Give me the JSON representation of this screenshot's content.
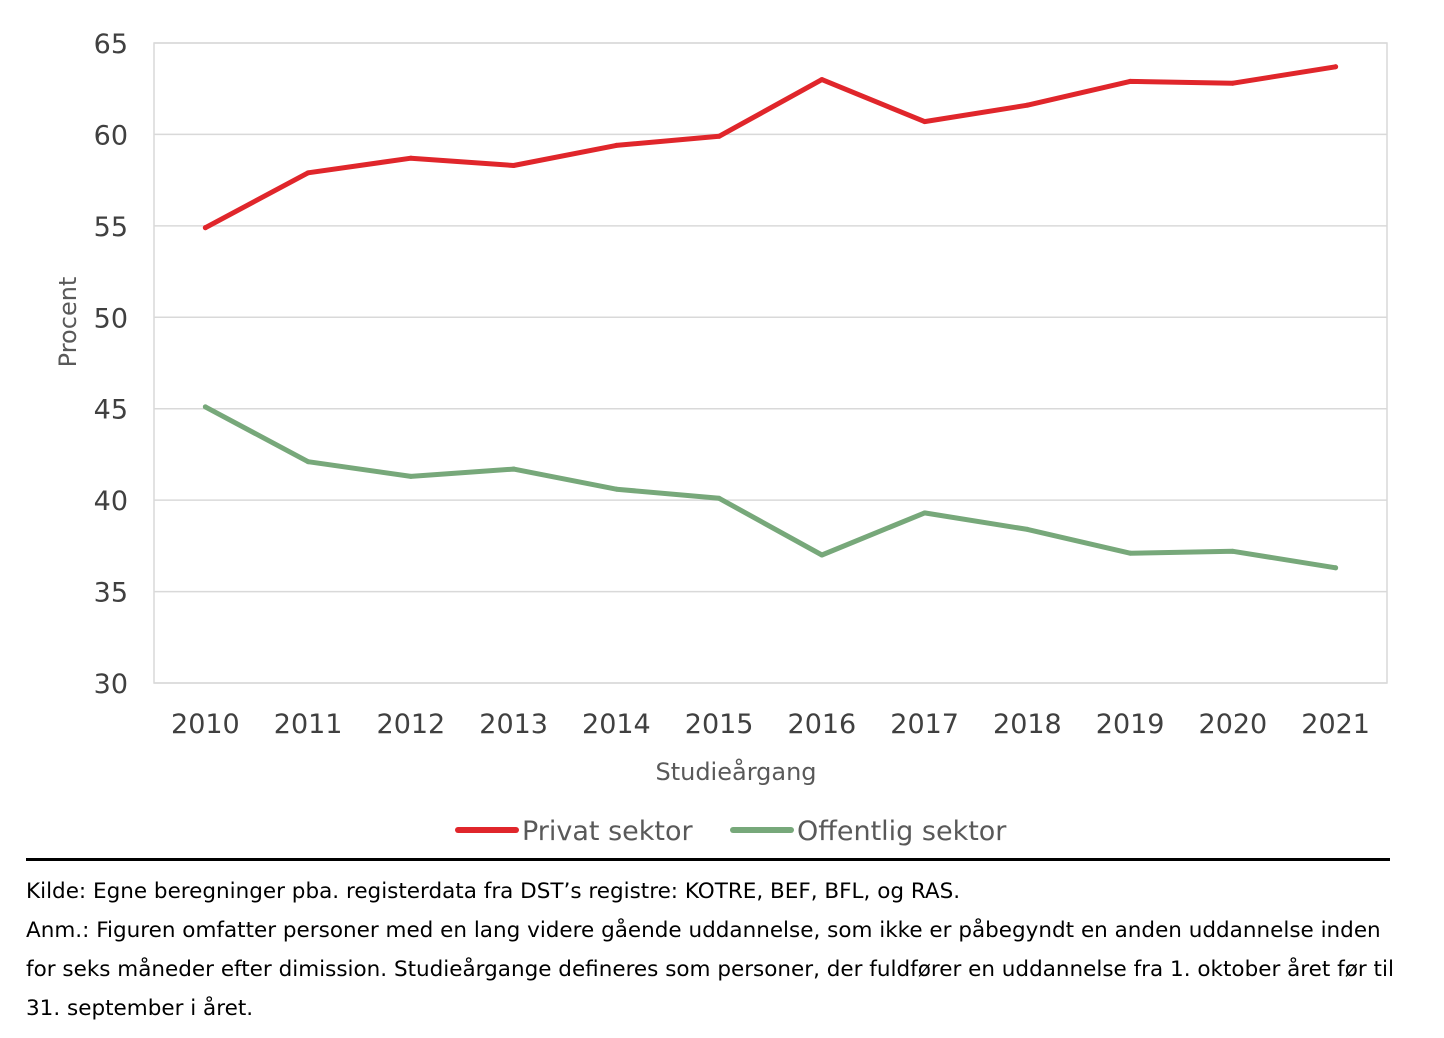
{
  "chart_data": {
    "type": "line",
    "x": [
      "2010",
      "2011",
      "2012",
      "2013",
      "2014",
      "2015",
      "2016",
      "2017",
      "2018",
      "2019",
      "2020",
      "2021"
    ],
    "series": [
      {
        "name": "Privat sektor",
        "color": "#e0262b",
        "values": [
          54.9,
          57.9,
          58.7,
          58.3,
          59.4,
          59.9,
          63.0,
          60.7,
          61.6,
          62.9,
          62.8,
          63.7
        ]
      },
      {
        "name": "Offentlig sektor",
        "color": "#77a87a",
        "values": [
          45.1,
          42.1,
          41.3,
          41.7,
          40.6,
          40.1,
          37.0,
          39.3,
          38.4,
          37.1,
          37.2,
          36.3
        ]
      }
    ],
    "xlabel": "Studieårgang",
    "ylabel": "Procent",
    "ylim": [
      30,
      65
    ],
    "yticks": [
      "30",
      "35",
      "40",
      "45",
      "50",
      "55",
      "60",
      "65"
    ],
    "grid": true,
    "legend": "bottom"
  },
  "notes": {
    "source": "Kilde: Egne beregninger pba. registerdata fra DST’s registre: KOTRE, BEF, BFL, og RAS.",
    "remark": "Anm.: Figuren omfatter personer med en lang videre gående uddannelse, som ikke er påbegyndt en anden uddannelse inden for seks måneder efter dimission. Studieårgange defineres som personer, der fuldfører en uddannelse fra 1. oktober året før til 31. september i året."
  }
}
